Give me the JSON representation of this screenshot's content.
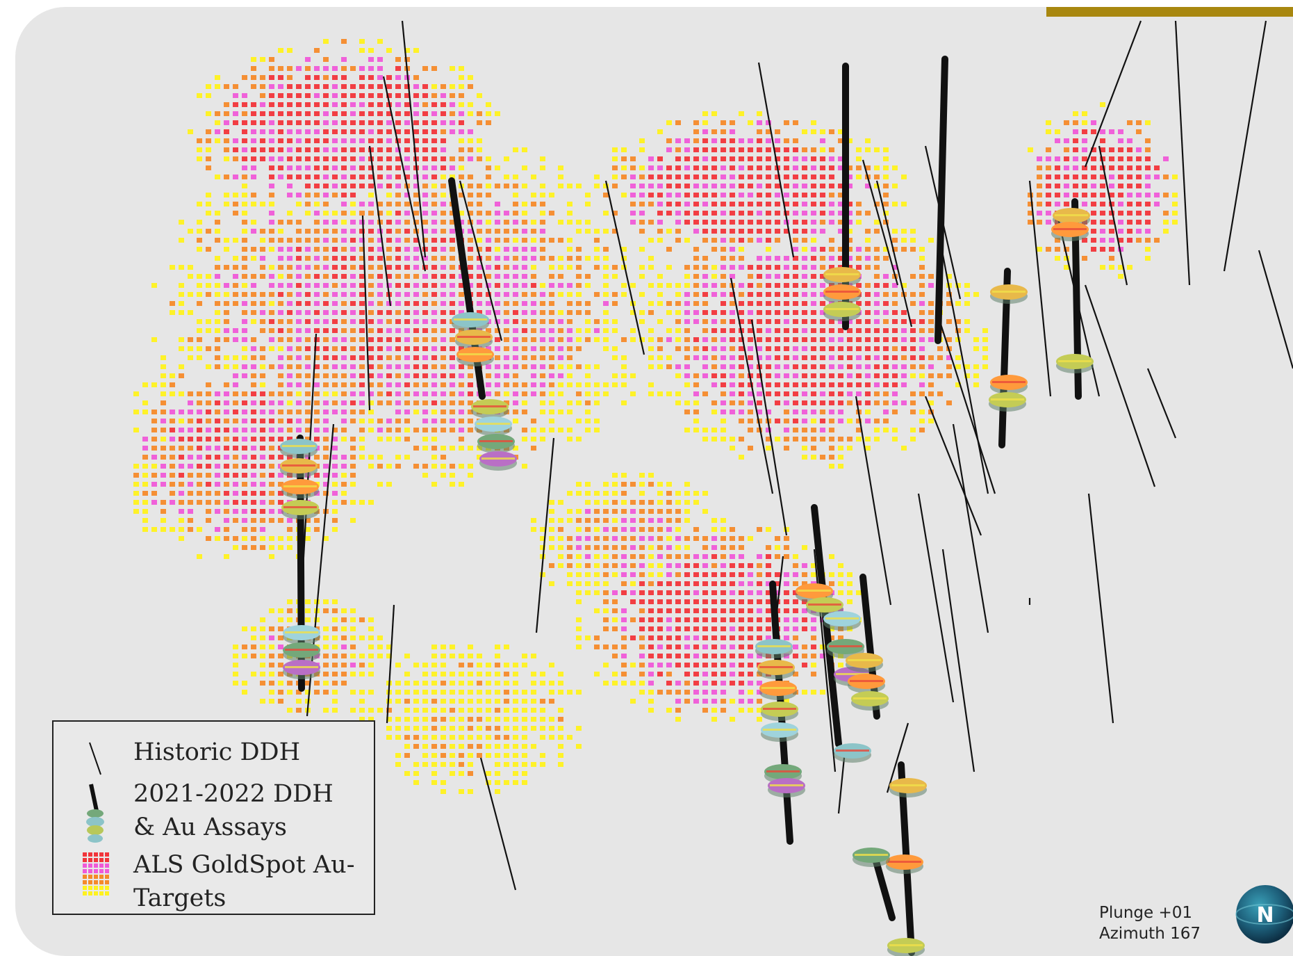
{
  "legend": {
    "items": [
      {
        "label": "Historic DDH",
        "icon": "historic-ddh-line-icon"
      },
      {
        "label": "2021-2022 DDH & Au Assays",
        "icon": "ddh-assay-cylinder-icon"
      },
      {
        "label": "ALS GoldSpot Au-Targets",
        "icon": "au-target-voxel-icon"
      }
    ]
  },
  "view": {
    "plunge": "Plunge +01",
    "azimuth": "Azimuth 167"
  },
  "compass": {
    "label": "N"
  },
  "colors": {
    "background": "#e6e6e6",
    "accent": "#a8870f",
    "target_high": "#f2353a",
    "target_mid": "#f05ad8",
    "target_low": "#fff21e",
    "target_orange": "#f58a2a",
    "drillhole": "#111111",
    "assay_teal": "#8cc4c8",
    "assay_green": "#74a87a"
  }
}
